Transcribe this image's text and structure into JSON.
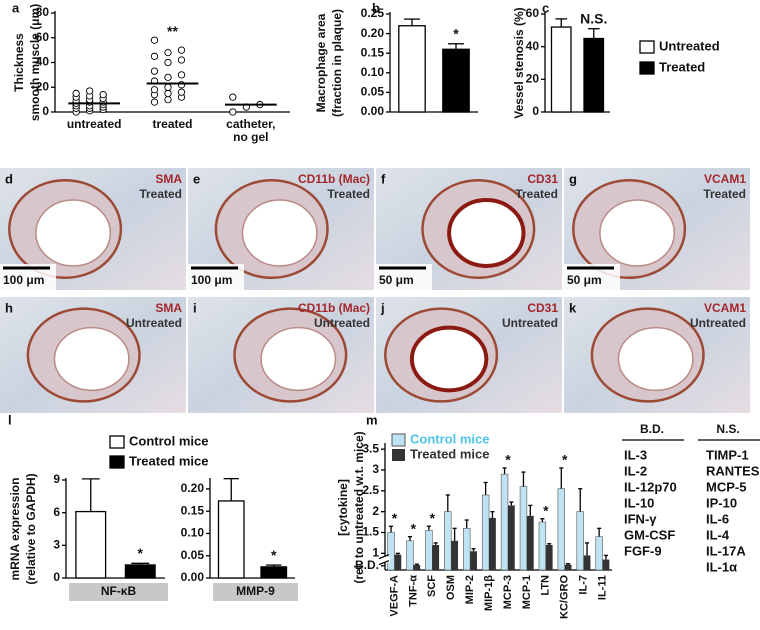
{
  "chart_data": [
    {
      "type": "strip",
      "panel": "a",
      "ylabel": [
        "Thickness",
        "smooth muscle (μm)"
      ],
      "categories": [
        [
          "untreated"
        ],
        [
          "treated"
        ],
        [
          "catheter,",
          "no gel"
        ]
      ],
      "points": [
        [
          0,
          1,
          2,
          3,
          3,
          4,
          5,
          5,
          6,
          7,
          8,
          8,
          9,
          10,
          11,
          12,
          13,
          14,
          15,
          17
        ],
        [
          8,
          10,
          12,
          14,
          15,
          16,
          18,
          20,
          22,
          25,
          28,
          30,
          33,
          40,
          42,
          45,
          48,
          50,
          58
        ],
        [
          0,
          4,
          6,
          12
        ]
      ],
      "means": [
        7,
        23,
        6
      ],
      "significance": [
        null,
        "**",
        null
      ],
      "ylim": [
        0,
        80
      ],
      "yticks": [
        0,
        20,
        40,
        60,
        80
      ]
    },
    {
      "type": "bar",
      "panel": "b",
      "ylabel": [
        "Macrophage area",
        "(fraction in plaque)"
      ],
      "values": [
        0.22,
        0.16
      ],
      "errors": [
        0.017,
        0.014
      ],
      "colors": [
        "#ffffff",
        "#000000"
      ],
      "significance": [
        null,
        "*"
      ],
      "ylim": [
        0,
        0.25
      ],
      "yticks": [
        {
          "value": 0,
          "label": "0.00"
        },
        {
          "value": 0.05,
          "label": "0.05"
        },
        {
          "value": 0.1,
          "label": "0.10"
        },
        {
          "value": 0.15,
          "label": "0.15"
        },
        {
          "value": 0.2,
          "label": "0.20"
        },
        {
          "value": 0.25,
          "label": "0.25"
        }
      ]
    },
    {
      "type": "bar",
      "panel": "c",
      "ylabel": [
        "Vessel stenosis (%)"
      ],
      "values": [
        52,
        45
      ],
      "errors": [
        5,
        6
      ],
      "colors": [
        "#ffffff",
        "#000000"
      ],
      "significance": [
        null,
        "N.S."
      ],
      "ylim": [
        0,
        60
      ],
      "yticks": [
        0,
        20,
        40,
        60
      ],
      "legend": [
        {
          "name": "Untreated",
          "color": "#ffffff"
        },
        {
          "name": "Treated",
          "color": "#000000"
        }
      ]
    },
    {
      "type": "bar",
      "panel": "l",
      "ylabel": [
        "mRNA expression",
        "(relative to GAPDH)"
      ],
      "xlabel": "NF-κB",
      "values": [
        6.1,
        1.2
      ],
      "errors": [
        3.0,
        0.15
      ],
      "colors": [
        "#ffffff",
        "#000000"
      ],
      "significance": [
        null,
        "*"
      ],
      "ylim": [
        0,
        9
      ],
      "yticks": [
        0,
        3,
        6,
        9
      ],
      "legend": [
        {
          "name": "Control mice",
          "color": "#ffffff"
        },
        {
          "name": "Treated mice",
          "color": "#000000"
        }
      ]
    },
    {
      "type": "bar",
      "xlabel": "MMP-9",
      "values": [
        0.173,
        0.025
      ],
      "errors": [
        0.05,
        0.004
      ],
      "colors": [
        "#ffffff",
        "#000000"
      ],
      "significance": [
        null,
        "*"
      ],
      "ylim": [
        0,
        0.22
      ],
      "yticks": [
        {
          "value": 0,
          "label": "0.00"
        },
        {
          "value": 0.05,
          "label": "0.05"
        },
        {
          "value": 0.1,
          "label": "0.10"
        },
        {
          "value": 0.15,
          "label": "0.15"
        },
        {
          "value": 0.2,
          "label": "0.20"
        }
      ]
    },
    {
      "type": "grouped-bar",
      "panel": "m",
      "ylabel": [
        "[cytokine]",
        "(rel. to untreated w.t. mice)"
      ],
      "categories": [
        "VEGF-A",
        "TNF-α",
        "SCF",
        "OSM",
        "MIP-2",
        "MIP-1β",
        "MCP-3",
        "MCP-1",
        "LTN",
        "KC/GRO",
        "IL-7",
        "IL-11"
      ],
      "series": [
        {
          "name": "Control mice",
          "color": "#bfe3f3",
          "text_color": "#4fc3ea",
          "values": [
            1.5,
            1.3,
            1.55,
            2.0,
            1.6,
            2.4,
            2.9,
            2.6,
            1.75,
            2.55,
            2.0,
            1.4
          ],
          "errors": [
            0.15,
            0.1,
            0.1,
            0.4,
            0.2,
            0.3,
            0.15,
            0.35,
            0.08,
            0.5,
            0.55,
            0.2
          ]
        },
        {
          "name": "Treated mice",
          "color": "#333333",
          "text_color": "#333333",
          "values": [
            0.97,
            0.72,
            1.2,
            1.3,
            1.05,
            1.85,
            2.15,
            1.9,
            1.2,
            0.73,
            0.95,
            0.85
          ],
          "errors": [
            0.03,
            0.02,
            0.05,
            0.3,
            0.06,
            0.15,
            0.08,
            0.25,
            0.03,
            0.02,
            0.3,
            0.1
          ]
        }
      ],
      "significance": [
        "*",
        "*",
        "*",
        null,
        null,
        null,
        "*",
        null,
        "*",
        "*",
        null,
        null
      ],
      "ylim": [
        0.6,
        3.6
      ],
      "yticks": [
        {
          "value": 0.7,
          "label": "B.D."
        },
        1,
        1.5,
        2,
        2.5,
        3,
        3.5
      ]
    }
  ],
  "micrographs": [
    {
      "label": "d",
      "stain": "SMA",
      "condition": "Treated",
      "scale_bar": "100 μm"
    },
    {
      "label": "e",
      "stain": "CD11b (Mac)",
      "condition": "Treated",
      "scale_bar": "100 μm"
    },
    {
      "label": "f",
      "stain": "CD31",
      "condition": "Treated",
      "scale_bar": "50 μm"
    },
    {
      "label": "g",
      "stain": "VCAM1",
      "condition": "Treated",
      "scale_bar": "50 μm"
    },
    {
      "label": "h",
      "stain": "SMA",
      "condition": "Untreated"
    },
    {
      "label": "i",
      "stain": "CD11b (Mac)",
      "condition": "Untreated"
    },
    {
      "label": "j",
      "stain": "CD31",
      "condition": "Untreated"
    },
    {
      "label": "k",
      "stain": "VCAM1",
      "condition": "Untreated"
    }
  ],
  "lists": [
    {
      "title": "B.D.",
      "items": [
        "IL-3",
        "IL-2",
        "IL-12p70",
        "IL-10",
        "IFN-γ",
        "GM-CSF",
        "FGF-9"
      ]
    },
    {
      "title": "N.S.",
      "items": [
        "TIMP-1",
        "RANTES",
        "MCP-5",
        "IP-10",
        "IL-6",
        "IL-4",
        "IL-17A",
        "IL-1α"
      ]
    }
  ]
}
